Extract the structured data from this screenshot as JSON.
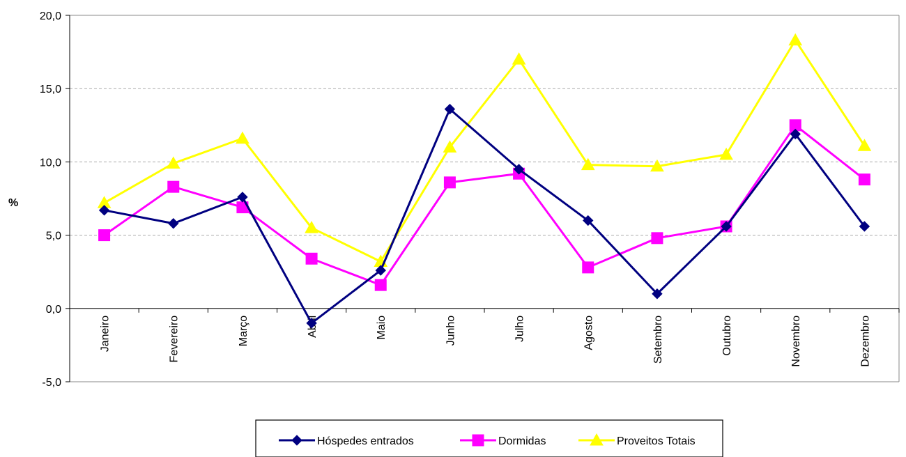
{
  "chart_data": {
    "type": "line",
    "title": "",
    "xlabel": "",
    "ylabel": "%",
    "ylim": [
      -5,
      20
    ],
    "yticks": [
      -5,
      0,
      5,
      10,
      15,
      20
    ],
    "ytick_labels": [
      "-5,0",
      "0,0",
      "5,0",
      "10,0",
      "15,0",
      "20,0"
    ],
    "grid": "horizontal dashed",
    "legend_position": "bottom",
    "categories": [
      "Janeiro",
      "Fevereiro",
      "Março",
      "Abril",
      "Maio",
      "Junho",
      "Julho",
      "Agosto",
      "Setembro",
      "Outubro",
      "Novembro",
      "Dezembro"
    ],
    "series": [
      {
        "name": "Hóspedes entrados",
        "color": "#000080",
        "marker": "diamond",
        "values": [
          6.7,
          5.8,
          7.6,
          -1.0,
          2.6,
          13.6,
          9.5,
          6.0,
          1.0,
          5.6,
          11.9,
          5.6
        ]
      },
      {
        "name": "Dormidas",
        "color": "#FF00FF",
        "marker": "square",
        "values": [
          5.0,
          8.3,
          6.9,
          3.4,
          1.6,
          8.6,
          9.2,
          2.8,
          4.8,
          5.6,
          12.5,
          8.8
        ]
      },
      {
        "name": "Proveitos Totais",
        "color": "#FFFF00",
        "marker": "triangle",
        "values": [
          7.2,
          9.9,
          11.6,
          5.5,
          3.2,
          11.0,
          17.0,
          9.8,
          9.7,
          10.5,
          18.3,
          11.1
        ]
      }
    ]
  }
}
